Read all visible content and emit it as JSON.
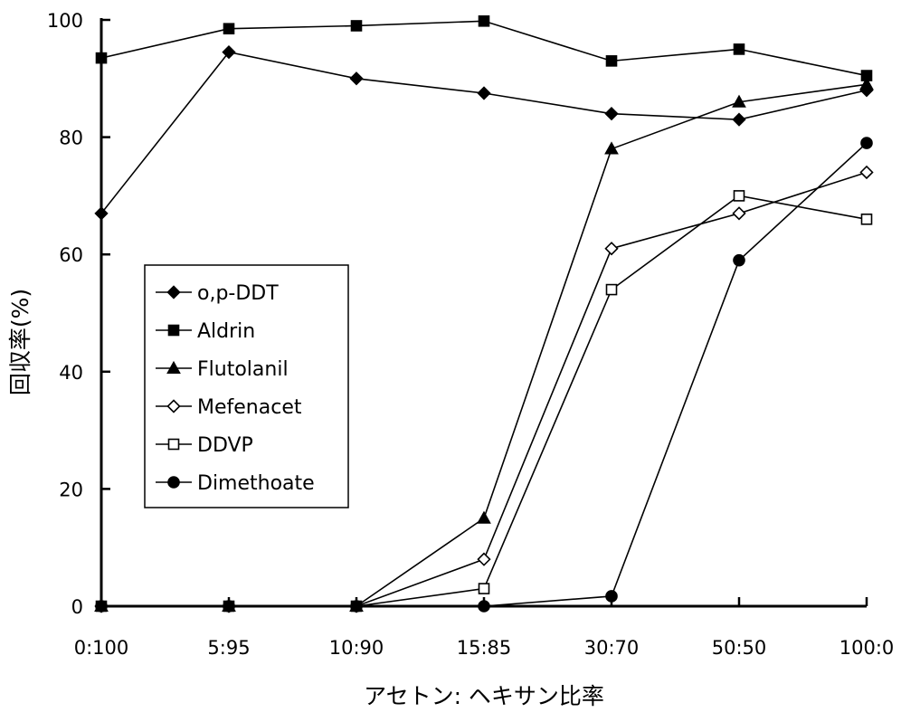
{
  "chart_data": {
    "type": "line",
    "title": "",
    "xlabel": "アセトン: ヘキサン比率",
    "ylabel": "回収率(%)",
    "categories": [
      "0:100",
      "5:95",
      "10:90",
      "15:85",
      "30:70",
      "50:50",
      "100:0"
    ],
    "ylim": [
      0,
      100
    ],
    "yticks": [
      0,
      20,
      40,
      60,
      80,
      100
    ],
    "grid": false,
    "legend_position": "left-middle",
    "series": [
      {
        "name": "o,p-DDT",
        "marker": "diamond-filled",
        "values": [
          67,
          94.5,
          90,
          87.5,
          84,
          83,
          88
        ]
      },
      {
        "name": "Aldrin",
        "marker": "square-filled",
        "values": [
          93.5,
          98.5,
          99,
          99.8,
          93,
          95,
          90.5
        ]
      },
      {
        "name": "Flutolanil",
        "marker": "triangle-filled",
        "values": [
          0,
          0,
          0,
          15,
          78,
          86,
          89
        ]
      },
      {
        "name": "Mefenacet",
        "marker": "diamond-open",
        "values": [
          0,
          0,
          0,
          8,
          61,
          67,
          74
        ]
      },
      {
        "name": "DDVP",
        "marker": "square-open",
        "values": [
          0,
          0,
          0,
          3,
          54,
          70,
          66
        ]
      },
      {
        "name": "Dimethoate",
        "marker": "circle-filled",
        "values": [
          0,
          0,
          0,
          0,
          1.7,
          59,
          79
        ]
      }
    ]
  }
}
